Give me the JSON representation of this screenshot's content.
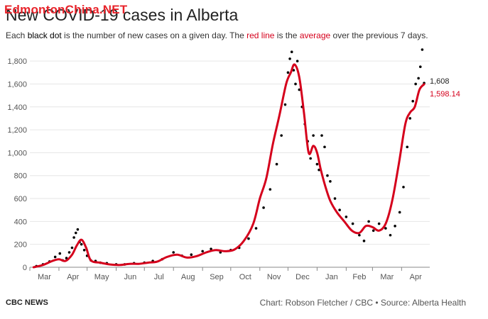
{
  "watermark": "EdmontonChina.NET",
  "title": "New COVID-19 cases in Alberta",
  "subtitle": {
    "p1": "Each ",
    "black_dot": "black dot",
    "p2": " is the number of new cases on a given day. The ",
    "red_line": "red line",
    "p3": " is the ",
    "average": "average",
    "p4": " over the previous 7 days."
  },
  "footer": {
    "left": "CBC NEWS",
    "right": "Chart: Robson Fletcher / CBC • Source: Alberta Health"
  },
  "colors": {
    "dot": "#000000",
    "line": "#d5001c",
    "grid": "#e6e6e6",
    "axis": "#888888"
  },
  "chart_data": {
    "type": "scatter",
    "title": "New COVID-19 cases in Alberta",
    "xlabel": "",
    "ylabel": "",
    "x_ticks": [
      "Mar",
      "Apr",
      "May",
      "Jun",
      "Jul",
      "Aug",
      "Sep",
      "Oct",
      "Nov",
      "Dec",
      "Jan",
      "Feb",
      "Mar",
      "Apr"
    ],
    "y_ticks": [
      "0",
      "200",
      "400",
      "600",
      "800",
      "1,000",
      "1,200",
      "1,400",
      "1,600",
      "1,800"
    ],
    "ylim": [
      0,
      1900
    ],
    "grid": "horizontal",
    "series": [
      {
        "name": "",
        "style": "line",
        "x": [
          "2020-03-05",
          "2020-03-15",
          "2020-03-25",
          "2020-04-01",
          "2020-04-08",
          "2020-04-15",
          "2020-04-20",
          "2020-04-25",
          "2020-04-30",
          "2020-05-05",
          "2020-05-15",
          "2020-05-25",
          "2020-06-05",
          "2020-06-15",
          "2020-06-25",
          "2020-07-05",
          "2020-07-15",
          "2020-07-25",
          "2020-08-05",
          "2020-08-15",
          "2020-08-25",
          "2020-09-05",
          "2020-09-15",
          "2020-09-25",
          "2020-10-05",
          "2020-10-15",
          "2020-10-25",
          "2020-11-01",
          "2020-11-08",
          "2020-11-15",
          "2020-11-22",
          "2020-11-29",
          "2020-12-04",
          "2020-12-08",
          "2020-12-13",
          "2020-12-18",
          "2020-12-23",
          "2020-12-28",
          "2021-01-01",
          "2021-01-05",
          "2021-01-10",
          "2021-01-15",
          "2021-01-22",
          "2021-01-30",
          "2021-02-07",
          "2021-02-15",
          "2021-02-22",
          "2021-03-01",
          "2021-03-08",
          "2021-03-15",
          "2021-03-22",
          "2021-03-29",
          "2021-04-05",
          "2021-04-10",
          "2021-04-15",
          "2021-04-20",
          "2021-04-25"
        ],
        "y": [
          0,
          20,
          55,
          70,
          55,
          110,
          190,
          240,
          170,
          60,
          40,
          25,
          20,
          30,
          30,
          40,
          50,
          90,
          110,
          85,
          95,
          130,
          150,
          140,
          155,
          230,
          380,
          600,
          780,
          1080,
          1330,
          1600,
          1700,
          1770,
          1660,
          1350,
          1000,
          1060,
          1000,
          850,
          700,
          580,
          480,
          400,
          320,
          300,
          360,
          350,
          320,
          380,
          580,
          900,
          1250,
          1350,
          1400,
          1550,
          1598.14
        ]
      },
      {
        "name": "",
        "style": "dots",
        "x": [
          "2020-03-08",
          "2020-03-15",
          "2020-03-22",
          "2020-03-28",
          "2020-04-02",
          "2020-04-05",
          "2020-04-09",
          "2020-04-12",
          "2020-04-15",
          "2020-04-17",
          "2020-04-19",
          "2020-04-21",
          "2020-04-23",
          "2020-04-25",
          "2020-04-28",
          "2020-05-01",
          "2020-05-05",
          "2020-05-10",
          "2020-05-15",
          "2020-05-22",
          "2020-06-01",
          "2020-06-10",
          "2020-06-20",
          "2020-07-01",
          "2020-07-10",
          "2020-07-20",
          "2020-08-01",
          "2020-08-10",
          "2020-08-20",
          "2020-09-01",
          "2020-09-10",
          "2020-09-20",
          "2020-10-01",
          "2020-10-10",
          "2020-10-20",
          "2020-10-28",
          "2020-11-05",
          "2020-11-12",
          "2020-11-19",
          "2020-11-24",
          "2020-11-28",
          "2020-12-01",
          "2020-12-03",
          "2020-12-05",
          "2020-12-07",
          "2020-12-09",
          "2020-12-11",
          "2020-12-13",
          "2020-12-16",
          "2020-12-19",
          "2020-12-22",
          "2020-12-25",
          "2020-12-28",
          "2021-01-01",
          "2021-01-03",
          "2021-01-06",
          "2021-01-09",
          "2021-01-12",
          "2021-01-15",
          "2021-01-20",
          "2021-01-25",
          "2021-02-01",
          "2021-02-08",
          "2021-02-15",
          "2021-02-20",
          "2021-02-25",
          "2021-03-02",
          "2021-03-08",
          "2021-03-15",
          "2021-03-20",
          "2021-03-25",
          "2021-03-30",
          "2021-04-03",
          "2021-04-07",
          "2021-04-10",
          "2021-04-13",
          "2021-04-16",
          "2021-04-19",
          "2021-04-21",
          "2021-04-23",
          "2021-04-25"
        ],
        "y": [
          10,
          25,
          50,
          90,
          120,
          60,
          80,
          130,
          170,
          260,
          300,
          330,
          220,
          200,
          150,
          100,
          60,
          55,
          40,
          35,
          25,
          25,
          35,
          40,
          55,
          70,
          130,
          100,
          110,
          140,
          160,
          130,
          150,
          170,
          250,
          340,
          520,
          680,
          900,
          1150,
          1420,
          1700,
          1820,
          1880,
          1720,
          1600,
          1800,
          1550,
          1400,
          1250,
          1100,
          950,
          1150,
          900,
          850,
          1150,
          1050,
          800,
          750,
          600,
          500,
          440,
          380,
          280,
          230,
          400,
          320,
          380,
          340,
          280,
          360,
          480,
          700,
          1050,
          1300,
          1450,
          1600,
          1650,
          1750,
          1900,
          1608
        ]
      }
    ],
    "end_labels": {
      "dots": "1,608",
      "line": "1,598.14"
    }
  }
}
